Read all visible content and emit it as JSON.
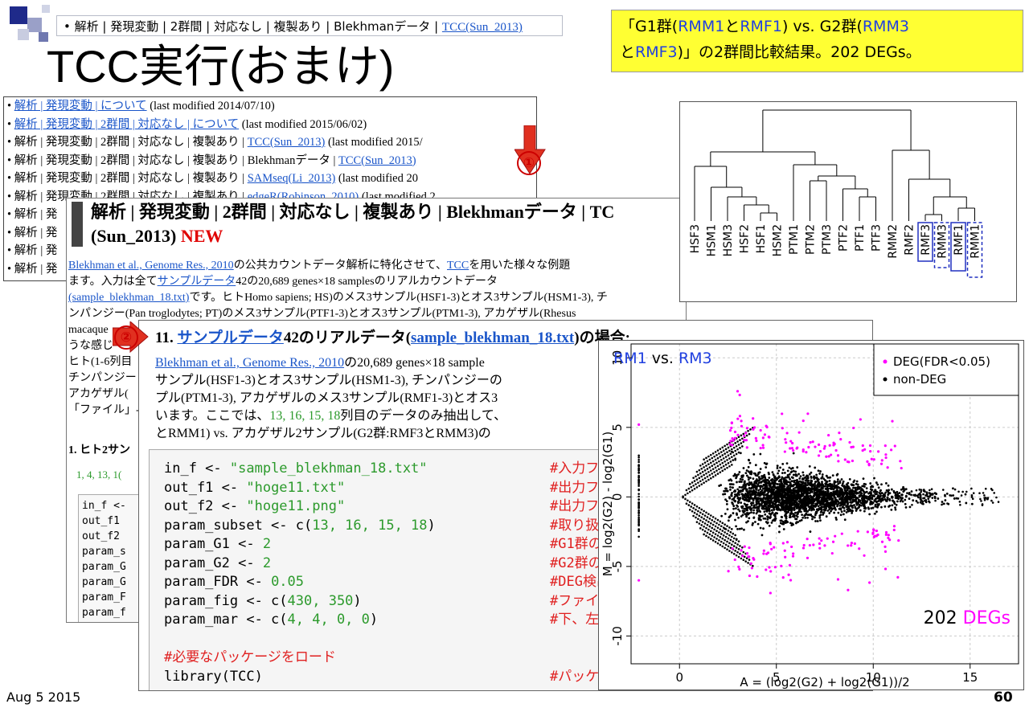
{
  "slide": {
    "breadcrumb_text": "解析 | 発現変動 | 2群間 | 対応なし | 複製あり | Blekhmanデータ | ",
    "breadcrumb_link": "TCC(Sun_2013)",
    "title": "TCC実行(おまけ)",
    "note_line1_a": "「G1群(",
    "note_line1_b": "RMM1",
    "note_line1_c": "と",
    "note_line1_d": "RMF1",
    "note_line1_e": ") vs. G2群(",
    "note_line1_f": "RMM3",
    "note_line2_a": "と",
    "note_line2_b": "RMF3",
    "note_line2_c": ")」の2群間比較結果。202 DEGs。",
    "date": "Aug 5 2015",
    "page_number": "60",
    "marker1": "①",
    "marker2": "②"
  },
  "list_panel": {
    "rows": [
      {
        "prefix": "",
        "link": "解析 | 発現変動 | について",
        "suffix": " (last modified 2014/07/10)"
      },
      {
        "prefix": "",
        "link": "解析 | 発現変動 | 2群間 | 対応なし | について",
        "suffix": " (last modified 2015/06/02)"
      },
      {
        "prefix": "解析 | 発現変動 | 2群間 | 対応なし | 複製あり | ",
        "link": "TCC(Sun_2013)",
        "suffix": " (last modified 2015/"
      },
      {
        "prefix": "解析 | 発現変動 | 2群間 | 対応なし | 複製あり | Blekhmanデータ | ",
        "link": "TCC(Sun_2013)",
        "suffix": ""
      },
      {
        "prefix": "解析 | 発現変動 | 2群間 | 対応なし | 複製あり | ",
        "link": "SAMseq(Li_2013)",
        "suffix": " (last modified 20"
      },
      {
        "prefix": "解析 | 発現変動 | 2群間 | 対応なし | 複製あり | ",
        "link": "edgeR(Robinson_2010)",
        "suffix": " (last modified 2"
      },
      {
        "prefix": "解析 | 発",
        "link": "",
        "suffix": ""
      },
      {
        "prefix": "解析 | 発",
        "link": "",
        "suffix": ""
      },
      {
        "prefix": "解析 | 発",
        "link": "",
        "suffix": ""
      },
      {
        "prefix": "解析 | 発",
        "link": "",
        "suffix": ""
      }
    ]
  },
  "page2": {
    "heading_line1": "解析 | 発現変動 | 2群間 | 対応なし | 複製あり | Blekhmanデータ | TC",
    "heading_line2": "(Sun_2013) ",
    "heading_new": "NEW",
    "body_lines": [
      {
        "link": "Blekhman et al., Genome Res., 2010",
        "text": "の公共カウントデータ解析に特化させて、",
        "link2": "TCC",
        "text2": "を用いた様々な例題"
      },
      {
        "link": "",
        "text": "ます。入力は全て",
        "link2": "サンプルデータ",
        "text2": "42の20,689 genes×18 samplesのリアルカウントデータ"
      },
      {
        "link": "(sample_blekhman_18.txt)",
        "text": "です。ヒトHomo sapiens; HS)のメス3サンプル(HSF1-3)とオス3サンプル(HSM1-3), チ",
        "link2": "",
        "text2": ""
      },
      {
        "link": "",
        "text": "ンパンジー(Pan troglodytes; PT)のメス3サンプル(PTF1-3)とオス3サンプル(PTM1-3), アカゲザル(Rhesus",
        "link2": "",
        "text2": ""
      },
      {
        "link": "",
        "text": "macaque",
        "link2": "",
        "text2": ""
      },
      {
        "link": "",
        "text": "うな感じ",
        "link2": "",
        "text2": ""
      },
      {
        "link": "",
        "text": "ヒト(1-6列目",
        "link2": "",
        "text2": ""
      },
      {
        "link": "",
        "text": "チンパンジー",
        "link2": "",
        "text2": ""
      },
      {
        "link": "",
        "text": "アカゲザル(",
        "link2": "",
        "text2": ""
      },
      {
        "link": "",
        "text": "「ファイル」-",
        "link2": "",
        "text2": ""
      }
    ],
    "subheading": "1. ヒト2サン",
    "sublinks": "1, 4, 13, 1(",
    "code_lines": [
      "in_f <-",
      "out_f1",
      "out_f2",
      "param_s",
      "param_G",
      "param_G",
      "param_F",
      "param_f"
    ]
  },
  "page3": {
    "heading_num": "11. ",
    "heading_link": "サンプルデータ",
    "heading_mid": "42のリアルデータ(",
    "heading_link2": "sample_blekhman_18.txt",
    "heading_end": ")の場合:",
    "desc_link": "Blekhman et al., Genome Res., 2010",
    "desc_line1": "の20,689 genes×18 sample",
    "desc_line2": "サンプル(HSF1-3)とオス3サンプル(HSM1-3), チンパンジーの",
    "desc_line3": "プル(PTM1-3), アカゲザルのメス3サンプル(RMF1-3)とオス3",
    "desc_line4_a": "います。ここでは、",
    "desc_line4_nums": "13, 16, 15, 18",
    "desc_line4_b": "列目のデータのみ抽出して、",
    "desc_line5": "とRMM1) vs. アカゲザル2サンプル(G2群:RMF3とRMM3)の",
    "code": [
      {
        "a": "in_f <- ",
        "s": "\"sample_blekhman_18.txt\"",
        "c": "#入力フ"
      },
      {
        "a": "out_f1 <- ",
        "s": "\"hoge11.txt\"",
        "c": "#出力フ"
      },
      {
        "a": "out_f2 <- ",
        "s": "\"hoge11.png\"",
        "c": "#出力フ"
      },
      {
        "a": "param_subset <- c(",
        "s": "13, 16, 15, 18",
        "e": ")",
        "c": "#取り扱"
      },
      {
        "a": "param_G1 <- ",
        "s": "2",
        "c": "#G1群の"
      },
      {
        "a": "param_G2 <- ",
        "s": "2",
        "c": "#G2群の"
      },
      {
        "a": "param_FDR <- ",
        "s": "0.05",
        "c": "#DEG検出"
      },
      {
        "a": "param_fig <- c(",
        "s": "430, 350",
        "e": ")",
        "c": "#ファイ"
      },
      {
        "a": "param_mar <- c(",
        "s": "4, 4, 0, 0",
        "e": ")",
        "c": "#下、左"
      },
      {
        "a": "",
        "s": "",
        "c": ""
      },
      {
        "a": "",
        "s": "",
        "c": "#必要なパッケージをロード",
        "full": true
      },
      {
        "a": "library(TCC)",
        "s": "",
        "c": "#パッケ"
      }
    ]
  },
  "dendrogram": {
    "labels": [
      "HSF3",
      "HSM1",
      "HSM3",
      "HSF2",
      "HSF1",
      "HSM2",
      "PTM1",
      "PTM2",
      "PTM3",
      "PTF2",
      "PTF1",
      "PTF3",
      "RMM2",
      "RMF2",
      "RMF3",
      "RMM3",
      "RMF1",
      "RMM1"
    ]
  },
  "chart_data": {
    "type": "scatter",
    "title_a": "RM1",
    "title_vs": " vs. ",
    "title_b": "RM3",
    "xlabel": "A = (log2(G2) + log2(G1))/2",
    "ylabel": "M = log2(G2) - log2(G1)",
    "xlim": [
      -2.5,
      17.5
    ],
    "ylim": [
      -12,
      11
    ],
    "xticks": [
      0,
      5,
      10,
      15
    ],
    "yticks": [
      -10,
      -5,
      0,
      5,
      10
    ],
    "legend": [
      {
        "name": "DEG(FDR<0.05)",
        "color": "#ff00ff"
      },
      {
        "name": "non-DEG",
        "color": "#000000"
      }
    ],
    "legend_position": "top-right",
    "annotation_num": "202 ",
    "annotation_text": "DEGs",
    "colors": {
      "deg": "#ff00ff",
      "nondeg": "#000000",
      "title_blue": "#2040e0"
    }
  }
}
